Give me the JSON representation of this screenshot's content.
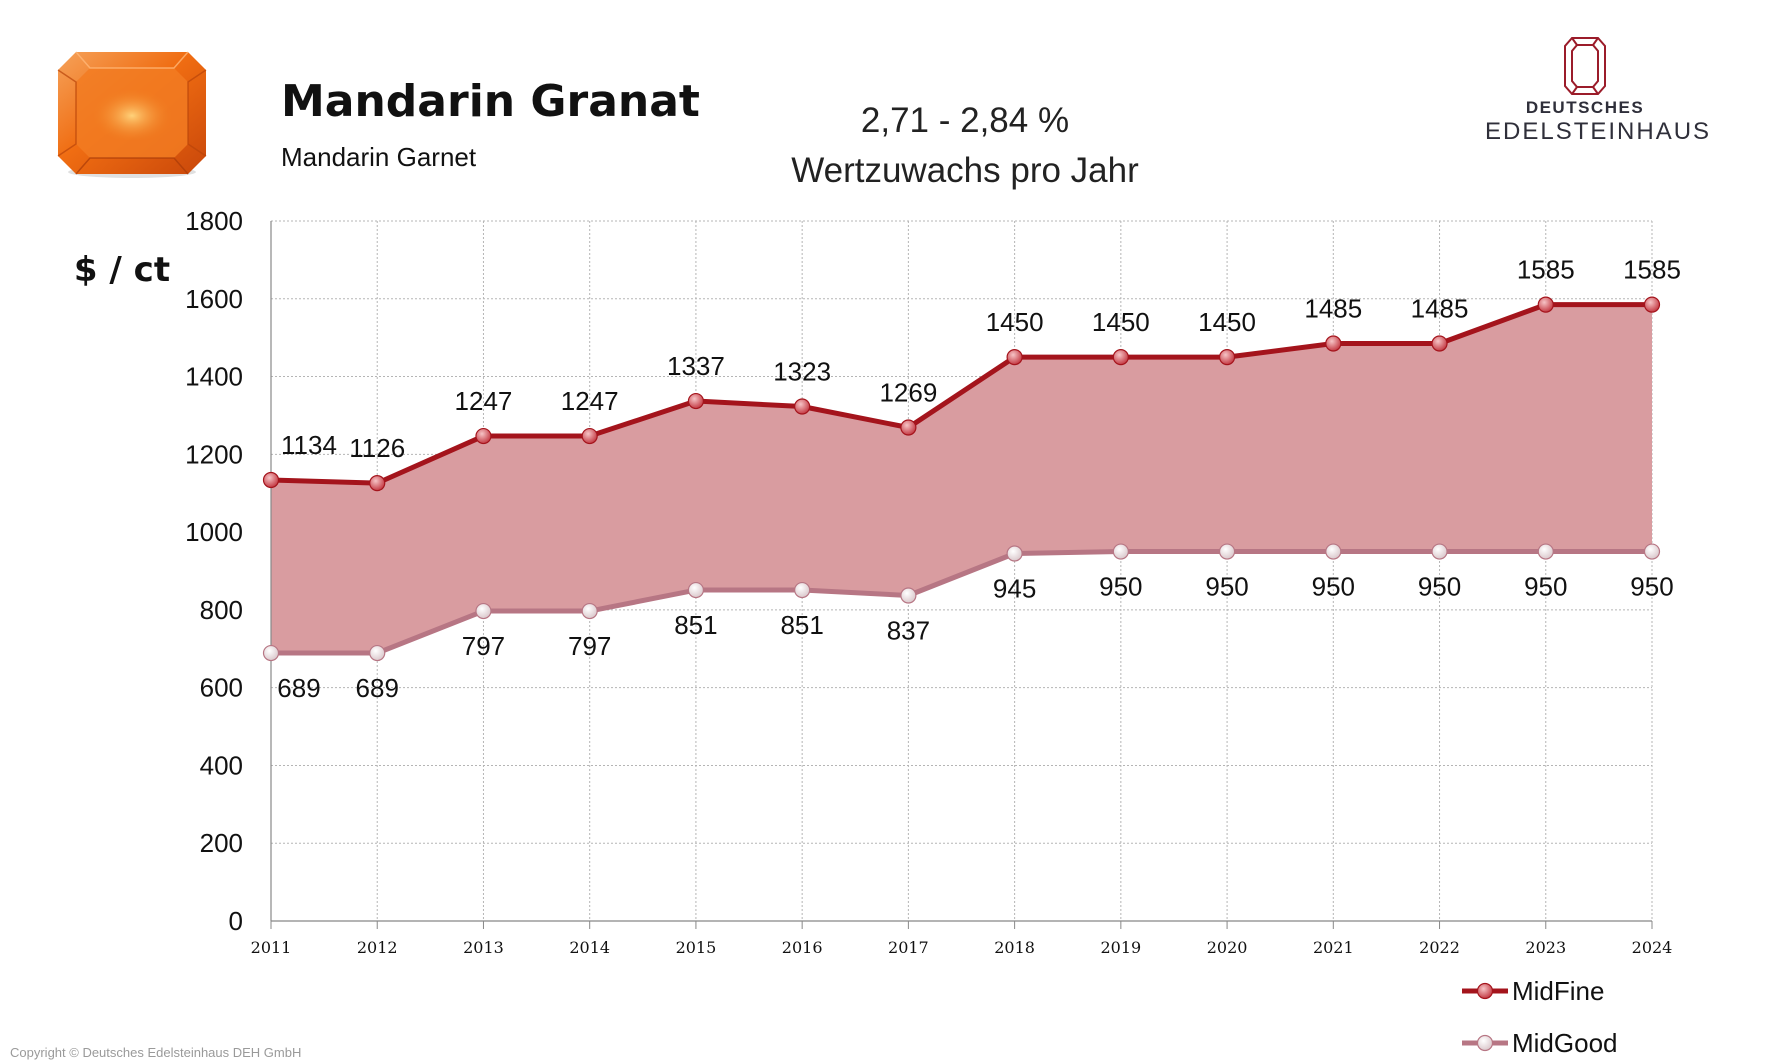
{
  "header": {
    "title": "Mandarin Granat",
    "subtitle": "Mandarin Garnet",
    "growth_line1": "2,71 - 2,84 %",
    "growth_line2": "Wertzuwachs pro Jahr"
  },
  "logo": {
    "line1": "DEUTSCHES",
    "line2": "EDELSTEINHAUS",
    "icon": "gem-outline-icon"
  },
  "gem_image": {
    "icon": "orange-emerald-cut-gem-icon"
  },
  "footer": {
    "copyright": "Copyright © Deutsches Edelsteinhaus DEH GmbH"
  },
  "colors": {
    "midfine_line": "#a4141c",
    "midgood_line": "#b77684",
    "fill": "#d99ca0",
    "grid": "#b5b5b5",
    "gem": "#f07a1e"
  },
  "chart_data": {
    "type": "area",
    "ylabel": "$ / ct",
    "xlabel": "",
    "ylim": [
      0,
      1800
    ],
    "yticks": [
      0,
      200,
      400,
      600,
      800,
      1000,
      1200,
      1400,
      1600,
      1800
    ],
    "x": [
      "2011",
      "2012",
      "2013",
      "2014",
      "2015",
      "2016",
      "2017",
      "2018",
      "2019",
      "2020",
      "2021",
      "2022",
      "2023",
      "2024"
    ],
    "grid": true,
    "legend_position": "bottom-right",
    "series": [
      {
        "name": "MidFine",
        "values": [
          1134,
          1126,
          1247,
          1247,
          1337,
          1323,
          1269,
          1450,
          1450,
          1450,
          1485,
          1485,
          1585,
          1585
        ]
      },
      {
        "name": "MidGood",
        "values": [
          689,
          689,
          797,
          797,
          851,
          851,
          837,
          945,
          950,
          950,
          950,
          950,
          950,
          950
        ]
      }
    ]
  }
}
